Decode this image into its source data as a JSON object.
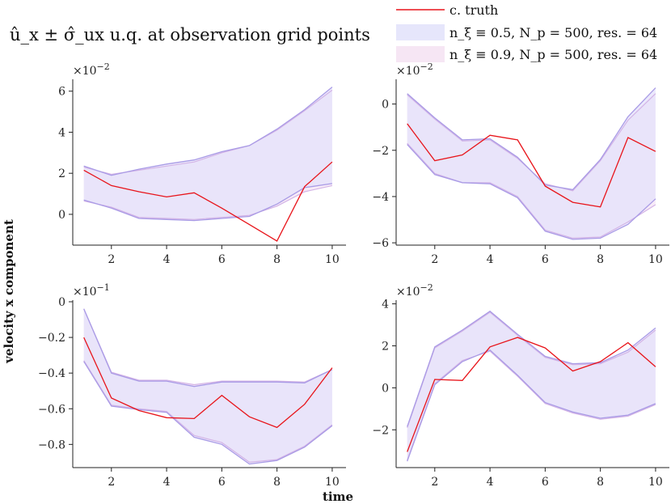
{
  "title": "û_x ± σ̂_ux u.q. at observation grid points",
  "legend": {
    "items": [
      {
        "label": "c. truth",
        "color": "#e8141a",
        "kind": "line"
      },
      {
        "label": "n_ξ ≡ 0.5, N_p = 500, res. = 64",
        "color": "#e6e6fb",
        "kind": "patch"
      },
      {
        "label": "n_ξ ≡ 0.9, N_p = 500, res. = 64",
        "color": "#f6e6f4",
        "kind": "patch"
      }
    ]
  },
  "xlabel": "time",
  "ylabel": "velocity x component",
  "colors": {
    "truth": "#e8141a",
    "band05_fill": "#e4e2fb",
    "band05_edge": "#a99be6",
    "band09_fill": "#f4e4f4",
    "band09_edge": "#d3b3e6"
  },
  "chart_data": [
    {
      "type": "line",
      "panel": "top-left",
      "x": [
        1,
        2,
        3,
        4,
        5,
        6,
        7,
        8,
        9,
        10
      ],
      "xticks": [
        2,
        4,
        6,
        8,
        10
      ],
      "xlim": [
        0.6,
        10.5
      ],
      "ylim": [
        -1.5,
        6.5
      ],
      "yticks": [
        0,
        2,
        4,
        6
      ],
      "scale_label": "×10^-2",
      "scale_base": "×10",
      "scale_exp": "−2",
      "series": [
        {
          "name": "c. truth",
          "values": [
            2.15,
            1.4,
            1.1,
            0.85,
            1.05,
            0.3,
            -0.5,
            -1.3,
            1.35,
            2.55
          ]
        },
        {
          "name": "n_ξ ≡ 0.5 upper",
          "values": [
            2.35,
            1.9,
            2.2,
            2.45,
            2.65,
            3.05,
            3.35,
            4.15,
            5.1,
            6.2
          ]
        },
        {
          "name": "n_ξ ≡ 0.5 lower",
          "values": [
            0.7,
            0.3,
            -0.2,
            -0.25,
            -0.3,
            -0.2,
            -0.1,
            0.5,
            1.3,
            1.5
          ]
        },
        {
          "name": "n_ξ ≡ 0.9 upper",
          "values": [
            2.3,
            1.95,
            2.15,
            2.35,
            2.55,
            3.0,
            3.35,
            4.1,
            5.05,
            6.05
          ]
        },
        {
          "name": "n_ξ ≡ 0.9 lower",
          "values": [
            0.65,
            0.35,
            -0.15,
            -0.2,
            -0.25,
            -0.15,
            -0.05,
            0.4,
            1.1,
            1.4
          ]
        }
      ]
    },
    {
      "type": "line",
      "panel": "top-right",
      "x": [
        1,
        2,
        3,
        4,
        5,
        6,
        7,
        8,
        9,
        10
      ],
      "xticks": [
        2,
        4,
        6,
        8,
        10
      ],
      "xlim": [
        0.6,
        10.5
      ],
      "ylim": [
        -6.1,
        1.0
      ],
      "yticks": [
        -6,
        -4,
        -2,
        0
      ],
      "scale_label": "×10^-2",
      "scale_base": "×10",
      "scale_exp": "−2",
      "series": [
        {
          "name": "c. truth",
          "values": [
            -0.85,
            -2.45,
            -2.2,
            -1.35,
            -1.55,
            -3.55,
            -4.25,
            -4.45,
            -1.45,
            -2.05
          ]
        },
        {
          "name": "n_ξ ≡ 0.5 upper",
          "values": [
            0.45,
            -0.6,
            -1.55,
            -1.5,
            -2.3,
            -3.5,
            -3.7,
            -2.4,
            -0.55,
            0.7
          ]
        },
        {
          "name": "n_ξ ≡ 0.5 lower",
          "values": [
            -1.75,
            -3.05,
            -3.4,
            -3.45,
            -4.05,
            -5.5,
            -5.85,
            -5.8,
            -5.2,
            -4.1
          ]
        },
        {
          "name": "n_ξ ≡ 0.9 upper",
          "values": [
            0.4,
            -0.65,
            -1.6,
            -1.55,
            -2.35,
            -3.45,
            -3.75,
            -2.45,
            -0.7,
            0.45
          ]
        },
        {
          "name": "n_ξ ≡ 0.9 lower",
          "values": [
            -1.7,
            -3.0,
            -3.4,
            -3.4,
            -4.0,
            -5.45,
            -5.8,
            -5.75,
            -5.1,
            -4.35
          ]
        }
      ]
    },
    {
      "type": "line",
      "panel": "bottom-left",
      "x": [
        1,
        2,
        3,
        4,
        5,
        6,
        7,
        8,
        9,
        10
      ],
      "xticks": [
        2,
        4,
        6,
        8,
        10
      ],
      "xlim": [
        0.6,
        10.5
      ],
      "ylim": [
        -0.93,
        0.0
      ],
      "yticks": [
        -0.8,
        -0.6,
        -0.4,
        -0.2,
        0.0
      ],
      "scale_label": "×10^-1",
      "scale_base": "×10",
      "scale_exp": "−1",
      "series": [
        {
          "name": "c. truth",
          "values": [
            -0.2,
            -0.54,
            -0.61,
            -0.65,
            -0.655,
            -0.525,
            -0.645,
            -0.705,
            -0.575,
            -0.37
          ]
        },
        {
          "name": "n_ξ ≡ 0.5 upper",
          "values": [
            -0.04,
            -0.4,
            -0.445,
            -0.445,
            -0.475,
            -0.45,
            -0.45,
            -0.45,
            -0.455,
            -0.38
          ]
        },
        {
          "name": "n_ξ ≡ 0.5 lower",
          "values": [
            -0.335,
            -0.585,
            -0.605,
            -0.62,
            -0.76,
            -0.8,
            -0.91,
            -0.89,
            -0.815,
            -0.695
          ]
        },
        {
          "name": "n_ξ ≡ 0.9 upper",
          "values": [
            -0.04,
            -0.395,
            -0.44,
            -0.44,
            -0.465,
            -0.445,
            -0.445,
            -0.445,
            -0.45,
            -0.38
          ]
        },
        {
          "name": "n_ξ ≡ 0.9 lower",
          "values": [
            -0.33,
            -0.58,
            -0.6,
            -0.615,
            -0.75,
            -0.79,
            -0.9,
            -0.885,
            -0.81,
            -0.69
          ]
        }
      ]
    },
    {
      "type": "line",
      "panel": "bottom-right",
      "x": [
        1,
        2,
        3,
        4,
        5,
        6,
        7,
        8,
        9,
        10
      ],
      "xticks": [
        2,
        4,
        6,
        8,
        10
      ],
      "xlim": [
        0.6,
        10.5
      ],
      "ylim": [
        -3.8,
        4.1
      ],
      "yticks": [
        -2,
        0,
        2,
        4
      ],
      "scale_label": "×10^-2",
      "scale_base": "×10",
      "scale_exp": "−2",
      "series": [
        {
          "name": "c. truth",
          "values": [
            -3.05,
            0.4,
            0.35,
            1.95,
            2.4,
            1.9,
            0.8,
            1.25,
            2.15,
            1.0
          ]
        },
        {
          "name": "n_ξ ≡ 0.5 upper",
          "values": [
            -1.85,
            1.95,
            2.75,
            3.65,
            2.55,
            1.5,
            1.15,
            1.2,
            1.8,
            2.85
          ]
        },
        {
          "name": "n_ξ ≡ 0.5 lower",
          "values": [
            -3.5,
            0.15,
            1.25,
            1.8,
            0.6,
            -0.7,
            -1.15,
            -1.45,
            -1.3,
            -0.75
          ]
        },
        {
          "name": "n_ξ ≡ 0.9 upper",
          "values": [
            -1.9,
            1.9,
            2.7,
            3.6,
            2.5,
            1.45,
            1.1,
            1.15,
            1.7,
            2.75
          ]
        },
        {
          "name": "n_ξ ≡ 0.9 lower",
          "values": [
            -3.45,
            0.2,
            1.3,
            1.75,
            0.55,
            -0.75,
            -1.2,
            -1.5,
            -1.35,
            -0.8
          ]
        }
      ]
    }
  ]
}
